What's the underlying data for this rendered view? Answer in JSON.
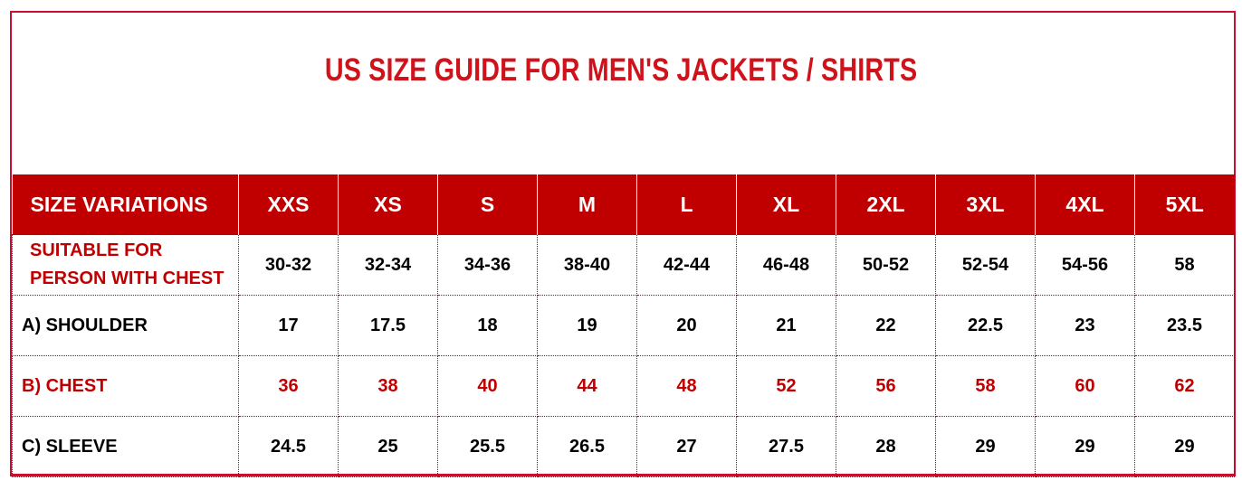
{
  "title": "US SIZE GUIDE FOR MEN'S JACKETS / SHIRTS",
  "colors": {
    "accent": "#c00000",
    "title": "#d0121b"
  },
  "table": {
    "header": [
      "SIZE VARIATIONS",
      "XXS",
      "XS",
      "S",
      "M",
      "L",
      "XL",
      "2XL",
      "3XL",
      "4XL",
      "5XL"
    ],
    "rows": [
      {
        "label": "SUITABLE FOR PERSON WITH CHEST",
        "values": [
          "30-32",
          "32-34",
          "34-36",
          "38-40",
          "42-44",
          "46-48",
          "50-52",
          "52-54",
          "54-56",
          "58"
        ]
      },
      {
        "label": "A) SHOULDER",
        "values": [
          "17",
          "17.5",
          "18",
          "19",
          "20",
          "21",
          "22",
          "22.5",
          "23",
          "23.5"
        ]
      },
      {
        "label": "B) CHEST",
        "values": [
          "36",
          "38",
          "40",
          "44",
          "48",
          "52",
          "56",
          "58",
          "60",
          "62"
        ]
      },
      {
        "label": "C) SLEEVE",
        "values": [
          "24.5",
          "25",
          "25.5",
          "26.5",
          "27",
          "27.5",
          "28",
          "29",
          "29",
          "29"
        ]
      }
    ]
  }
}
